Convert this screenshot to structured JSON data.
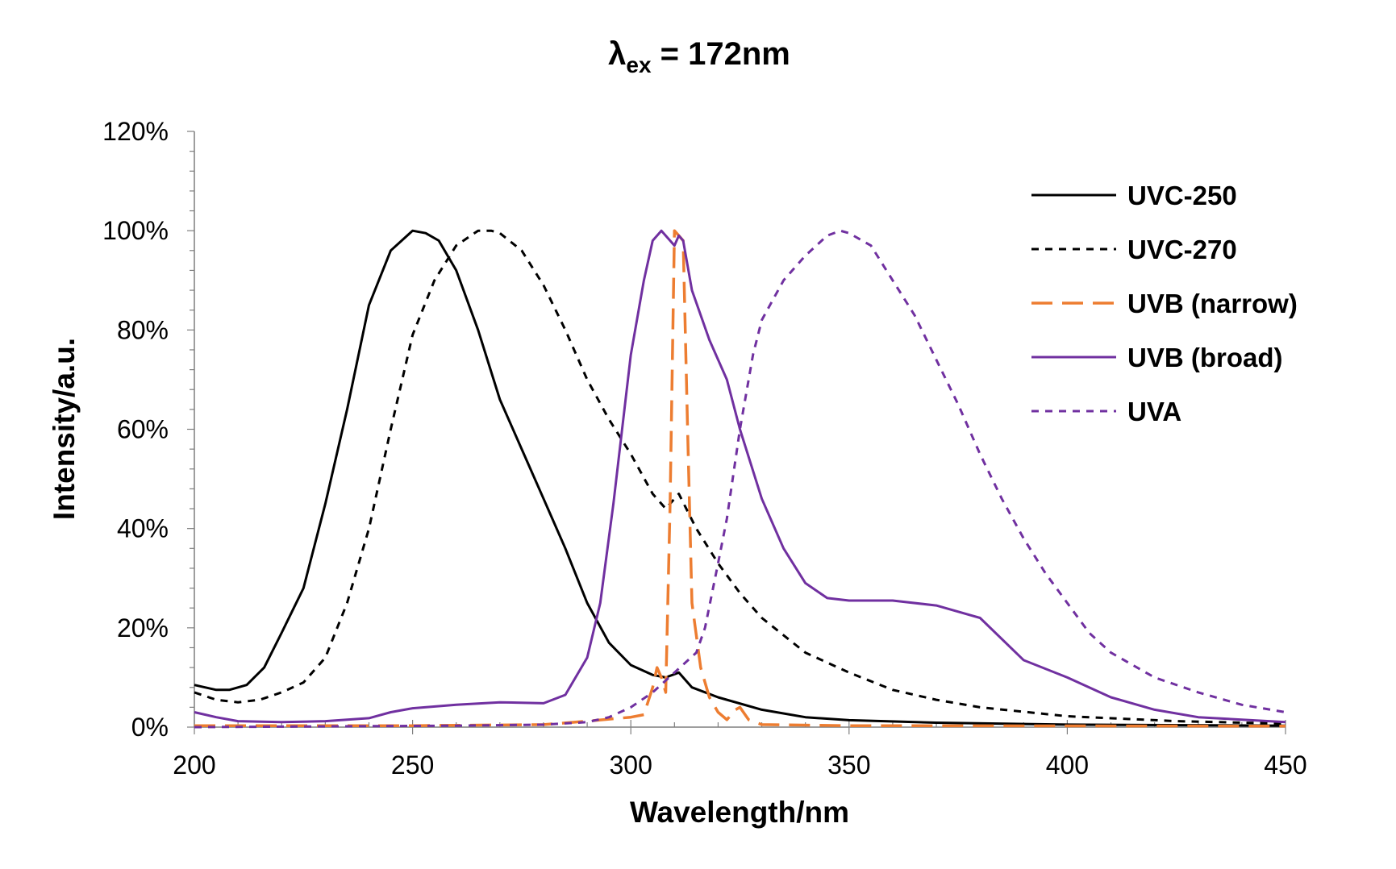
{
  "chart_data": {
    "type": "line",
    "title": "λex = 172nm",
    "title_main": "λ",
    "title_sub": "ex",
    "title_rest": " = 172nm",
    "xlabel": "Wavelength/nm",
    "ylabel": "Intensity/a.u.",
    "xlim": [
      200,
      450
    ],
    "ylim": [
      0,
      120
    ],
    "x_ticks": [
      "200",
      "250",
      "300",
      "350",
      "400",
      "450"
    ],
    "y_ticks": [
      "0%",
      "20%",
      "40%",
      "60%",
      "80%",
      "100%",
      "120%"
    ],
    "grid": false,
    "legend_position": "top-right",
    "series": [
      {
        "name": "UVC-250",
        "color": "#000000",
        "style": "solid",
        "points": [
          [
            200,
            8.5
          ],
          [
            205,
            7.5
          ],
          [
            208,
            7.5
          ],
          [
            212,
            8.5
          ],
          [
            216,
            12
          ],
          [
            220,
            19
          ],
          [
            225,
            28
          ],
          [
            230,
            45
          ],
          [
            235,
            64
          ],
          [
            240,
            85
          ],
          [
            245,
            96
          ],
          [
            250,
            100
          ],
          [
            253,
            99.5
          ],
          [
            256,
            98
          ],
          [
            260,
            92
          ],
          [
            265,
            80
          ],
          [
            270,
            66
          ],
          [
            275,
            56
          ],
          [
            280,
            46
          ],
          [
            285,
            36
          ],
          [
            290,
            25
          ],
          [
            295,
            17
          ],
          [
            300,
            12.5
          ],
          [
            305,
            10.5
          ],
          [
            308,
            10
          ],
          [
            311,
            11
          ],
          [
            314,
            8
          ],
          [
            320,
            6
          ],
          [
            330,
            3.5
          ],
          [
            340,
            2
          ],
          [
            350,
            1.4
          ],
          [
            370,
            0.9
          ],
          [
            400,
            0.5
          ],
          [
            450,
            0.3
          ]
        ]
      },
      {
        "name": "UVC-270",
        "color": "#000000",
        "style": "short-dash",
        "points": [
          [
            200,
            7
          ],
          [
            205,
            5.5
          ],
          [
            210,
            5
          ],
          [
            215,
            5.5
          ],
          [
            220,
            7
          ],
          [
            225,
            9
          ],
          [
            230,
            14
          ],
          [
            235,
            25
          ],
          [
            240,
            40
          ],
          [
            245,
            60
          ],
          [
            250,
            79
          ],
          [
            255,
            90
          ],
          [
            260,
            97
          ],
          [
            265,
            100
          ],
          [
            268,
            100
          ],
          [
            270,
            99.5
          ],
          [
            275,
            96
          ],
          [
            280,
            89
          ],
          [
            285,
            80
          ],
          [
            290,
            70
          ],
          [
            295,
            62
          ],
          [
            300,
            55
          ],
          [
            305,
            47
          ],
          [
            308,
            44
          ],
          [
            311,
            47
          ],
          [
            315,
            40
          ],
          [
            320,
            33
          ],
          [
            325,
            27
          ],
          [
            330,
            22
          ],
          [
            340,
            15
          ],
          [
            350,
            11
          ],
          [
            360,
            7.5
          ],
          [
            370,
            5.5
          ],
          [
            380,
            4
          ],
          [
            400,
            2.2
          ],
          [
            425,
            1.2
          ],
          [
            450,
            0.7
          ]
        ]
      },
      {
        "name": "UVB (narrow)",
        "color": "#ED7D31",
        "style": "long-dash",
        "points": [
          [
            200,
            0.3
          ],
          [
            250,
            0.3
          ],
          [
            280,
            0.5
          ],
          [
            290,
            1.2
          ],
          [
            300,
            2
          ],
          [
            303,
            2.5
          ],
          [
            305,
            8
          ],
          [
            306,
            12
          ],
          [
            307,
            10
          ],
          [
            308,
            7
          ],
          [
            309,
            45
          ],
          [
            310,
            100
          ],
          [
            311,
            99
          ],
          [
            312,
            98
          ],
          [
            313,
            60
          ],
          [
            314,
            25
          ],
          [
            316,
            12
          ],
          [
            318,
            6
          ],
          [
            320,
            3
          ],
          [
            322,
            1.5
          ],
          [
            324,
            3.5
          ],
          [
            325,
            4
          ],
          [
            327,
            1.5
          ],
          [
            330,
            0.5
          ],
          [
            350,
            0.3
          ],
          [
            450,
            0.2
          ]
        ]
      },
      {
        "name": "UVB (broad)",
        "color": "#7030A0",
        "style": "solid",
        "points": [
          [
            200,
            3
          ],
          [
            205,
            2
          ],
          [
            210,
            1.2
          ],
          [
            220,
            1
          ],
          [
            230,
            1.2
          ],
          [
            240,
            1.8
          ],
          [
            245,
            3
          ],
          [
            250,
            3.8
          ],
          [
            260,
            4.5
          ],
          [
            270,
            5
          ],
          [
            280,
            4.8
          ],
          [
            285,
            6.5
          ],
          [
            290,
            14
          ],
          [
            293,
            25
          ],
          [
            296,
            45
          ],
          [
            298,
            60
          ],
          [
            300,
            75
          ],
          [
            303,
            90
          ],
          [
            305,
            98
          ],
          [
            307,
            100
          ],
          [
            309,
            98
          ],
          [
            310,
            97
          ],
          [
            311,
            99
          ],
          [
            312,
            98
          ],
          [
            314,
            88
          ],
          [
            318,
            78
          ],
          [
            322,
            70
          ],
          [
            325,
            60
          ],
          [
            330,
            46
          ],
          [
            335,
            36
          ],
          [
            340,
            29
          ],
          [
            345,
            26
          ],
          [
            350,
            25.5
          ],
          [
            360,
            25.5
          ],
          [
            370,
            24.5
          ],
          [
            380,
            22
          ],
          [
            390,
            13.5
          ],
          [
            400,
            10
          ],
          [
            410,
            6
          ],
          [
            420,
            3.5
          ],
          [
            430,
            2
          ],
          [
            450,
            1
          ]
        ]
      },
      {
        "name": "UVA",
        "color": "#7030A0",
        "style": "short-dash",
        "points": [
          [
            200,
            0
          ],
          [
            260,
            0.3
          ],
          [
            280,
            0.5
          ],
          [
            290,
            1
          ],
          [
            295,
            2
          ],
          [
            300,
            4
          ],
          [
            305,
            7
          ],
          [
            310,
            11
          ],
          [
            315,
            15
          ],
          [
            317,
            20
          ],
          [
            320,
            33
          ],
          [
            322,
            42
          ],
          [
            325,
            60
          ],
          [
            328,
            75
          ],
          [
            330,
            82
          ],
          [
            335,
            90
          ],
          [
            340,
            95
          ],
          [
            345,
            99
          ],
          [
            348,
            100
          ],
          [
            350,
            99.5
          ],
          [
            355,
            97
          ],
          [
            360,
            90
          ],
          [
            365,
            83
          ],
          [
            370,
            74
          ],
          [
            375,
            65
          ],
          [
            380,
            55
          ],
          [
            385,
            46
          ],
          [
            390,
            38
          ],
          [
            395,
            31
          ],
          [
            400,
            25
          ],
          [
            405,
            19
          ],
          [
            410,
            15
          ],
          [
            420,
            10
          ],
          [
            430,
            7
          ],
          [
            440,
            4.5
          ],
          [
            450,
            3
          ]
        ]
      }
    ]
  }
}
